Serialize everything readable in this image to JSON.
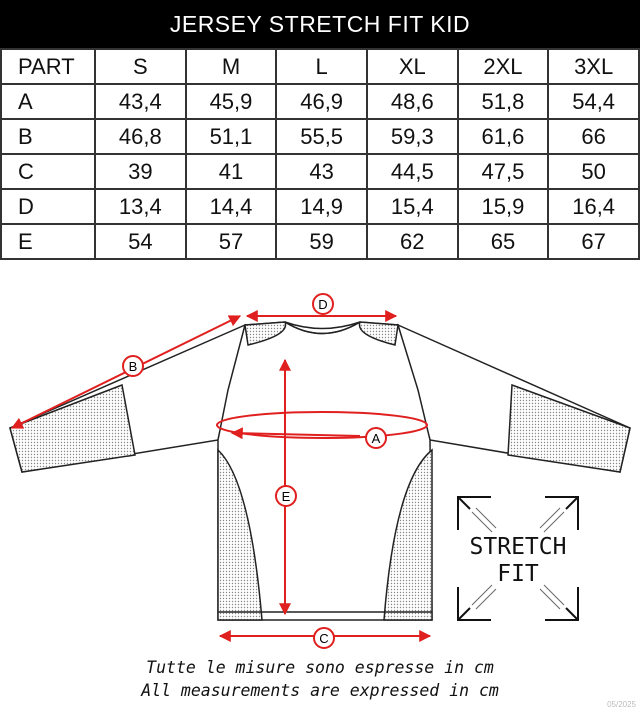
{
  "title": "JERSEY STRETCH FIT KID",
  "table": {
    "headers": [
      "PART",
      "S",
      "M",
      "L",
      "XL",
      "2XL",
      "3XL"
    ],
    "rows": [
      {
        "part": "A",
        "values": [
          "43,4",
          "45,9",
          "46,9",
          "48,6",
          "51,8",
          "54,4"
        ]
      },
      {
        "part": "B",
        "values": [
          "46,8",
          "51,1",
          "55,5",
          "59,3",
          "61,6",
          "66"
        ]
      },
      {
        "part": "C",
        "values": [
          "39",
          "41",
          "43",
          "44,5",
          "47,5",
          "50"
        ]
      },
      {
        "part": "D",
        "values": [
          "13,4",
          "14,4",
          "14,9",
          "15,4",
          "15,9",
          "16,4"
        ]
      },
      {
        "part": "E",
        "values": [
          "54",
          "57",
          "59",
          "62",
          "65",
          "67"
        ]
      }
    ]
  },
  "diagram": {
    "labels": [
      "A",
      "B",
      "C",
      "D",
      "E"
    ],
    "badge_line1": "STRETCH",
    "badge_line2": "FIT",
    "accent_color": "#e0201f"
  },
  "notes": {
    "italian": "Tutte le misure sono espresse in cm",
    "english": "All measurements are expressed in cm"
  },
  "date": "05/2025"
}
